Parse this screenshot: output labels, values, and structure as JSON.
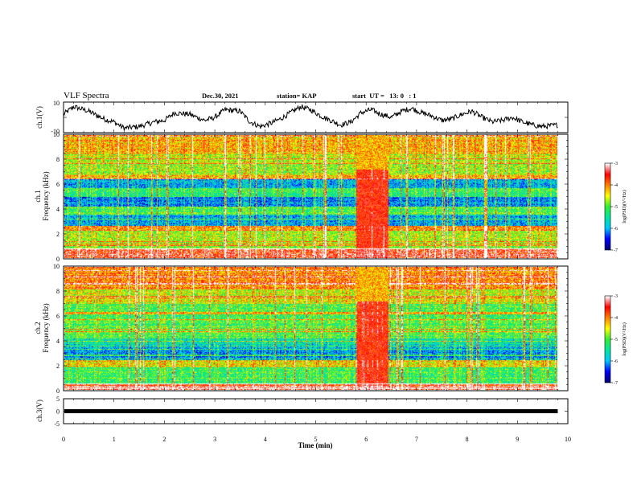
{
  "header": {
    "title": "VLF Spectra",
    "date": "Dec.30, 2021",
    "station": "station= KAP",
    "start": "start  UT =   13: 0   : 1"
  },
  "chart_data": [
    {
      "type": "line",
      "panel": "ch1-waveform",
      "ylabel": "ch.1(V)",
      "ylim": [
        -10,
        10
      ],
      "yticks": [
        "10",
        "-10"
      ],
      "x_range_min": [
        0,
        9.8
      ],
      "trend": {
        "x": [
          0,
          0.2,
          0.5,
          0.8,
          1.0,
          1.2,
          1.5,
          1.8,
          2.0,
          2.2,
          2.5,
          2.8,
          3.0,
          3.2,
          3.5,
          3.7,
          3.9,
          4.1,
          4.3,
          4.5,
          4.7,
          4.9,
          5.1,
          5.3,
          5.5,
          5.7,
          5.9,
          6.1,
          6.3,
          6.5,
          6.7,
          6.9,
          7.1,
          7.3,
          7.5,
          7.7,
          7.9,
          8.1,
          8.3,
          8.5,
          8.7,
          8.9,
          9.1,
          9.3,
          9.5,
          9.8
        ],
        "y": [
          2,
          7,
          4,
          -1,
          -3,
          -7,
          -6,
          -3,
          -2,
          3,
          2,
          -2,
          0,
          5,
          4,
          -3,
          -6,
          -4,
          -1,
          3,
          7,
          5,
          1,
          -2,
          -5,
          -3,
          3,
          5,
          2,
          0,
          4,
          6,
          3,
          1,
          -2,
          -1,
          2,
          4,
          0,
          -3,
          -2,
          0,
          -3,
          -5,
          -6,
          -5
        ]
      }
    },
    {
      "type": "heatmap",
      "panel": "ch1-spectrogram",
      "ylabel": "ch.1\nFrequency (kHz)",
      "ylim": [
        0,
        10
      ],
      "yticks": [
        0,
        2,
        4,
        6,
        8,
        10
      ],
      "colorbar": {
        "label": "log(PSD)(V²/Hz)",
        "range": [
          -7,
          -3
        ],
        "ticks": [
          "-3",
          "-4",
          "-5",
          "-6",
          "-7"
        ]
      },
      "x_range_min": [
        0,
        9.8
      ],
      "burst_interval_min": [
        5.8,
        6.45
      ],
      "bands_kHz": [
        {
          "from": 0.0,
          "to": 0.8,
          "level": -3.5
        },
        {
          "from": 0.8,
          "to": 2.2,
          "level": -4.8
        },
        {
          "from": 2.2,
          "to": 2.6,
          "level": -4.0
        },
        {
          "from": 2.6,
          "to": 3.5,
          "level": -6.0
        },
        {
          "from": 3.5,
          "to": 4.2,
          "level": -5.1
        },
        {
          "from": 4.2,
          "to": 5.0,
          "level": -6.1
        },
        {
          "from": 5.0,
          "to": 5.7,
          "level": -5.2
        },
        {
          "from": 5.7,
          "to": 6.4,
          "level": -6.0
        },
        {
          "from": 6.4,
          "to": 6.8,
          "level": -4.3
        },
        {
          "from": 6.8,
          "to": 8.4,
          "level": -4.7
        },
        {
          "from": 8.4,
          "to": 10.0,
          "level": -4.2
        }
      ]
    },
    {
      "type": "heatmap",
      "panel": "ch2-spectrogram",
      "ylabel": "ch.2\nFrequency (kHz)",
      "ylim": [
        0,
        10
      ],
      "yticks": [
        0,
        2,
        4,
        6,
        8,
        10
      ],
      "colorbar": {
        "label": "log(PSD)(V²/Hz)",
        "range": [
          -7,
          -3
        ],
        "ticks": [
          "-3",
          "-4",
          "-5",
          "-6",
          "-7"
        ]
      },
      "x_range_min": [
        0,
        9.8
      ],
      "burst_interval_min": [
        5.8,
        6.45
      ],
      "bands_kHz": [
        {
          "from": 0.0,
          "to": 0.5,
          "level": -3.6
        },
        {
          "from": 0.5,
          "to": 1.8,
          "level": -5.2
        },
        {
          "from": 1.8,
          "to": 2.4,
          "level": -4.4
        },
        {
          "from": 2.4,
          "to": 3.6,
          "level": -6.1
        },
        {
          "from": 3.6,
          "to": 4.2,
          "level": -5.6
        },
        {
          "from": 4.2,
          "to": 5.3,
          "level": -5.0
        },
        {
          "from": 5.3,
          "to": 7.0,
          "level": -5.1
        },
        {
          "from": 7.0,
          "to": 8.2,
          "level": -4.6
        },
        {
          "from": 8.2,
          "to": 10.0,
          "level": -4.0
        }
      ]
    },
    {
      "type": "line",
      "panel": "ch3-waveform",
      "ylabel": "ch.3(V)",
      "ylim": [
        -5,
        5
      ],
      "yticks": [
        "5",
        "0",
        "-5"
      ],
      "x_range_min": [
        0,
        9.8
      ],
      "level_V": 0,
      "xlabel": "Time  (min)",
      "xlim": [
        0,
        10
      ],
      "xticks": [
        "0",
        "1",
        "2",
        "3",
        "4",
        "5",
        "6",
        "7",
        "8",
        "9",
        "10"
      ]
    }
  ],
  "colors": {
    "colormap": [
      "#000070",
      "#0000ff",
      "#00c8ff",
      "#00e6a0",
      "#33ee33",
      "#ffff00",
      "#ff8000",
      "#ff0000",
      "#ffffff"
    ]
  }
}
